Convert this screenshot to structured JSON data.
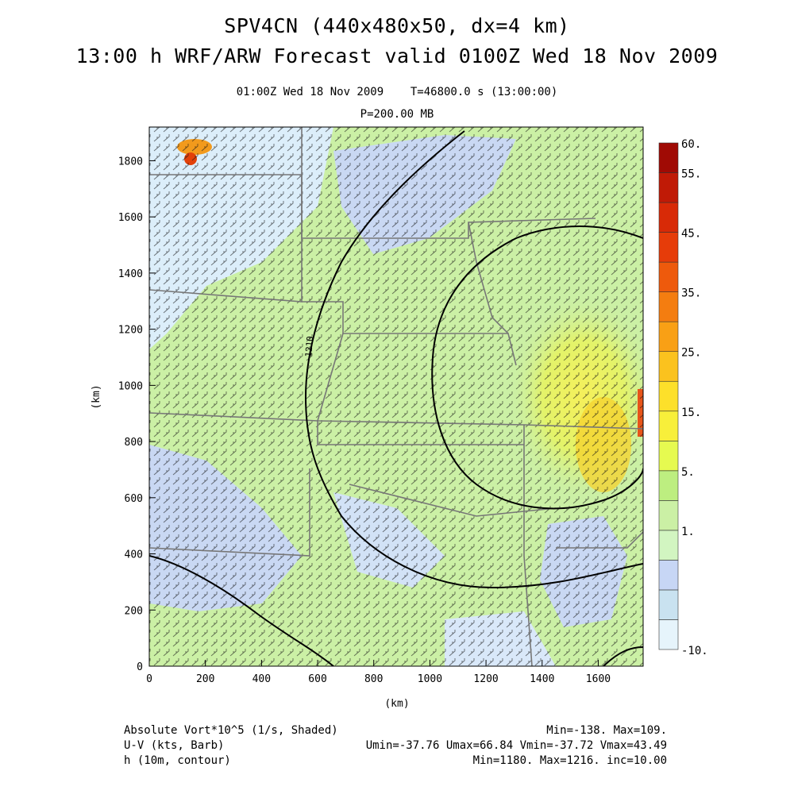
{
  "header": {
    "title_line1": "SPV4CN (440x480x50, dx=4 km)",
    "title_line2": "13:00 h WRF/ARW Forecast valid 0100Z Wed 18 Nov 2009",
    "subtitle_line1": "01:00Z Wed 18 Nov 2009    T=46800.0 s (13:00:00)",
    "subtitle_line2": "P=200.00 MB"
  },
  "chart_data": {
    "type": "heatmap",
    "title": "13:00 h WRF/ARW Forecast valid 0100Z Wed 18 Nov 2009",
    "xlabel": "(km)",
    "ylabel": "(km)",
    "xlim": [
      0,
      1760
    ],
    "ylim": [
      0,
      1920
    ],
    "x_ticks": [
      "0",
      "200",
      "400",
      "600",
      "800",
      "1000",
      "1200",
      "1400",
      "1600"
    ],
    "y_ticks": [
      "0",
      "200",
      "400",
      "600",
      "800",
      "1000",
      "1200",
      "1400",
      "1600",
      "1800"
    ],
    "contour_label": "1210",
    "colorbar": {
      "levels": [
        -10,
        1,
        5,
        15,
        25,
        35,
        45,
        55,
        60
      ],
      "labels": [
        "60.",
        "55.",
        "45.",
        "35.",
        "25.",
        "15.",
        "5.",
        "1.",
        "-10."
      ],
      "colors": [
        "#e6f4fb",
        "#c9e2f0",
        "#c7d6f5",
        "#d2f5c1",
        "#cbf0a5",
        "#bdee80",
        "#e6fa50",
        "#f8ef3a",
        "#fde02a",
        "#fbc21e",
        "#f9a015",
        "#f47d10",
        "#ee5a0c",
        "#e63c09",
        "#d82a07",
        "#c01a06",
        "#a00a04"
      ]
    },
    "barbs": "U-V wind barbs (kts)"
  },
  "footer": {
    "left": [
      "Absolute Vort*10^5 (1/s, Shaded)",
      "U-V (kts, Barb)",
      "h (10m, contour)"
    ],
    "right": [
      "Min=-138. Max=109.",
      "Umin=-37.76 Umax=66.84 Vmin=-37.72 Vmax=43.49",
      "Min=1180. Max=1216. inc=10.00"
    ]
  }
}
